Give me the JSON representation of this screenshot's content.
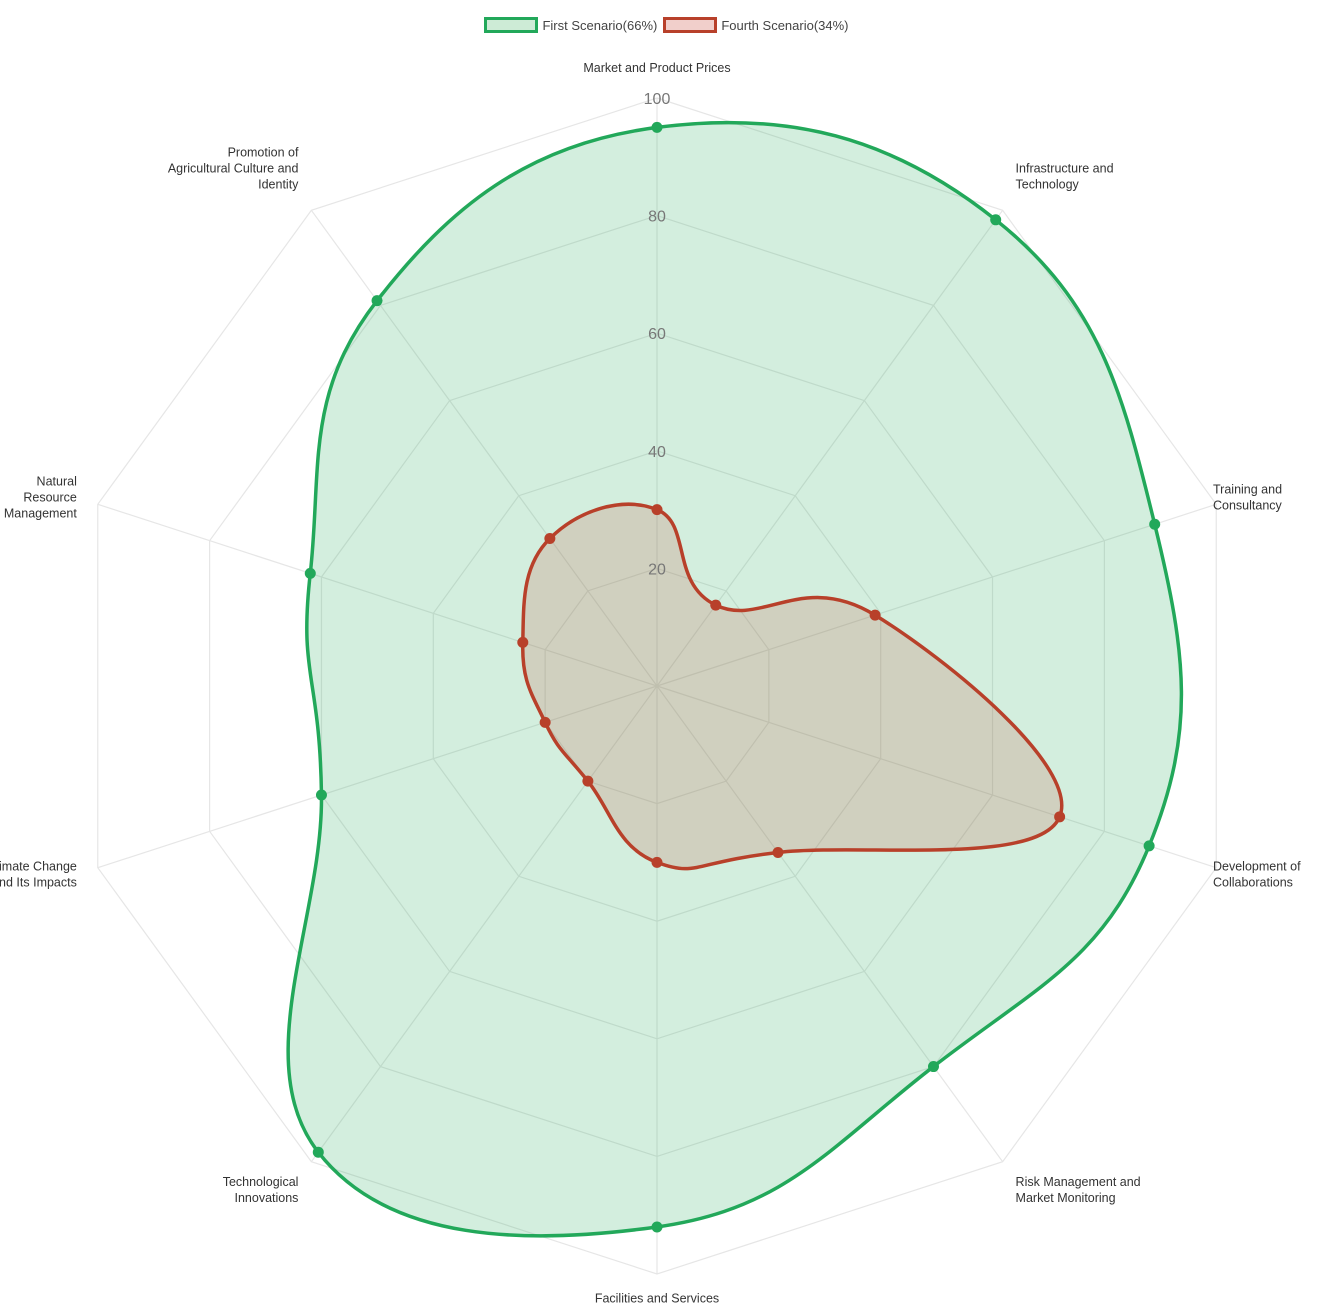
{
  "chart_data": {
    "type": "radar",
    "axes": [
      "Market and Product Prices",
      "Infrastructure and Technology",
      "Training and Consultancy",
      "Development of Collaborations",
      "Risk Management and Market Monitoring",
      "Facilities and Services",
      "Technological Innovations",
      "Climate Change and Its Impacts",
      "Natural Resource Management",
      "Promotion of Agricultural Culture and Identity"
    ],
    "axis_label_lines": [
      [
        "Market and Product Prices"
      ],
      [
        "Infrastructure and",
        "Technology"
      ],
      [
        "Training and",
        "Consultancy"
      ],
      [
        "Development of",
        "Collaborations"
      ],
      [
        "Risk Management and",
        "Market Monitoring"
      ],
      [
        "Facilities and Services"
      ],
      [
        "Technological",
        "Innovations"
      ],
      [
        "Climate Change",
        "and Its Impacts"
      ],
      [
        "Natural",
        "Resource",
        "Management"
      ],
      [
        "Promotion of",
        "Agricultural Culture and",
        "Identity"
      ]
    ],
    "r_range": [
      0,
      100
    ],
    "r_ticks": [
      20,
      40,
      60,
      80,
      100
    ],
    "grid": true,
    "legend_position": "top-center",
    "series": [
      {
        "name": "First Scenario(66%)",
        "values": [
          95,
          98,
          89,
          88,
          80,
          92,
          98,
          60,
          62,
          81
        ],
        "line_color": "#22a85a",
        "fill_color": "rgba(34,168,90,0.20)",
        "legend_fill": "#cdebd6"
      },
      {
        "name": "Fourth Scenario(34%)",
        "values": [
          30,
          17,
          39,
          72,
          35,
          30,
          20,
          20,
          24,
          31
        ],
        "line_color": "#b8402a",
        "fill_color": "rgba(200,90,70,0.20)",
        "legend_fill": "#f1cfcb"
      }
    ]
  }
}
